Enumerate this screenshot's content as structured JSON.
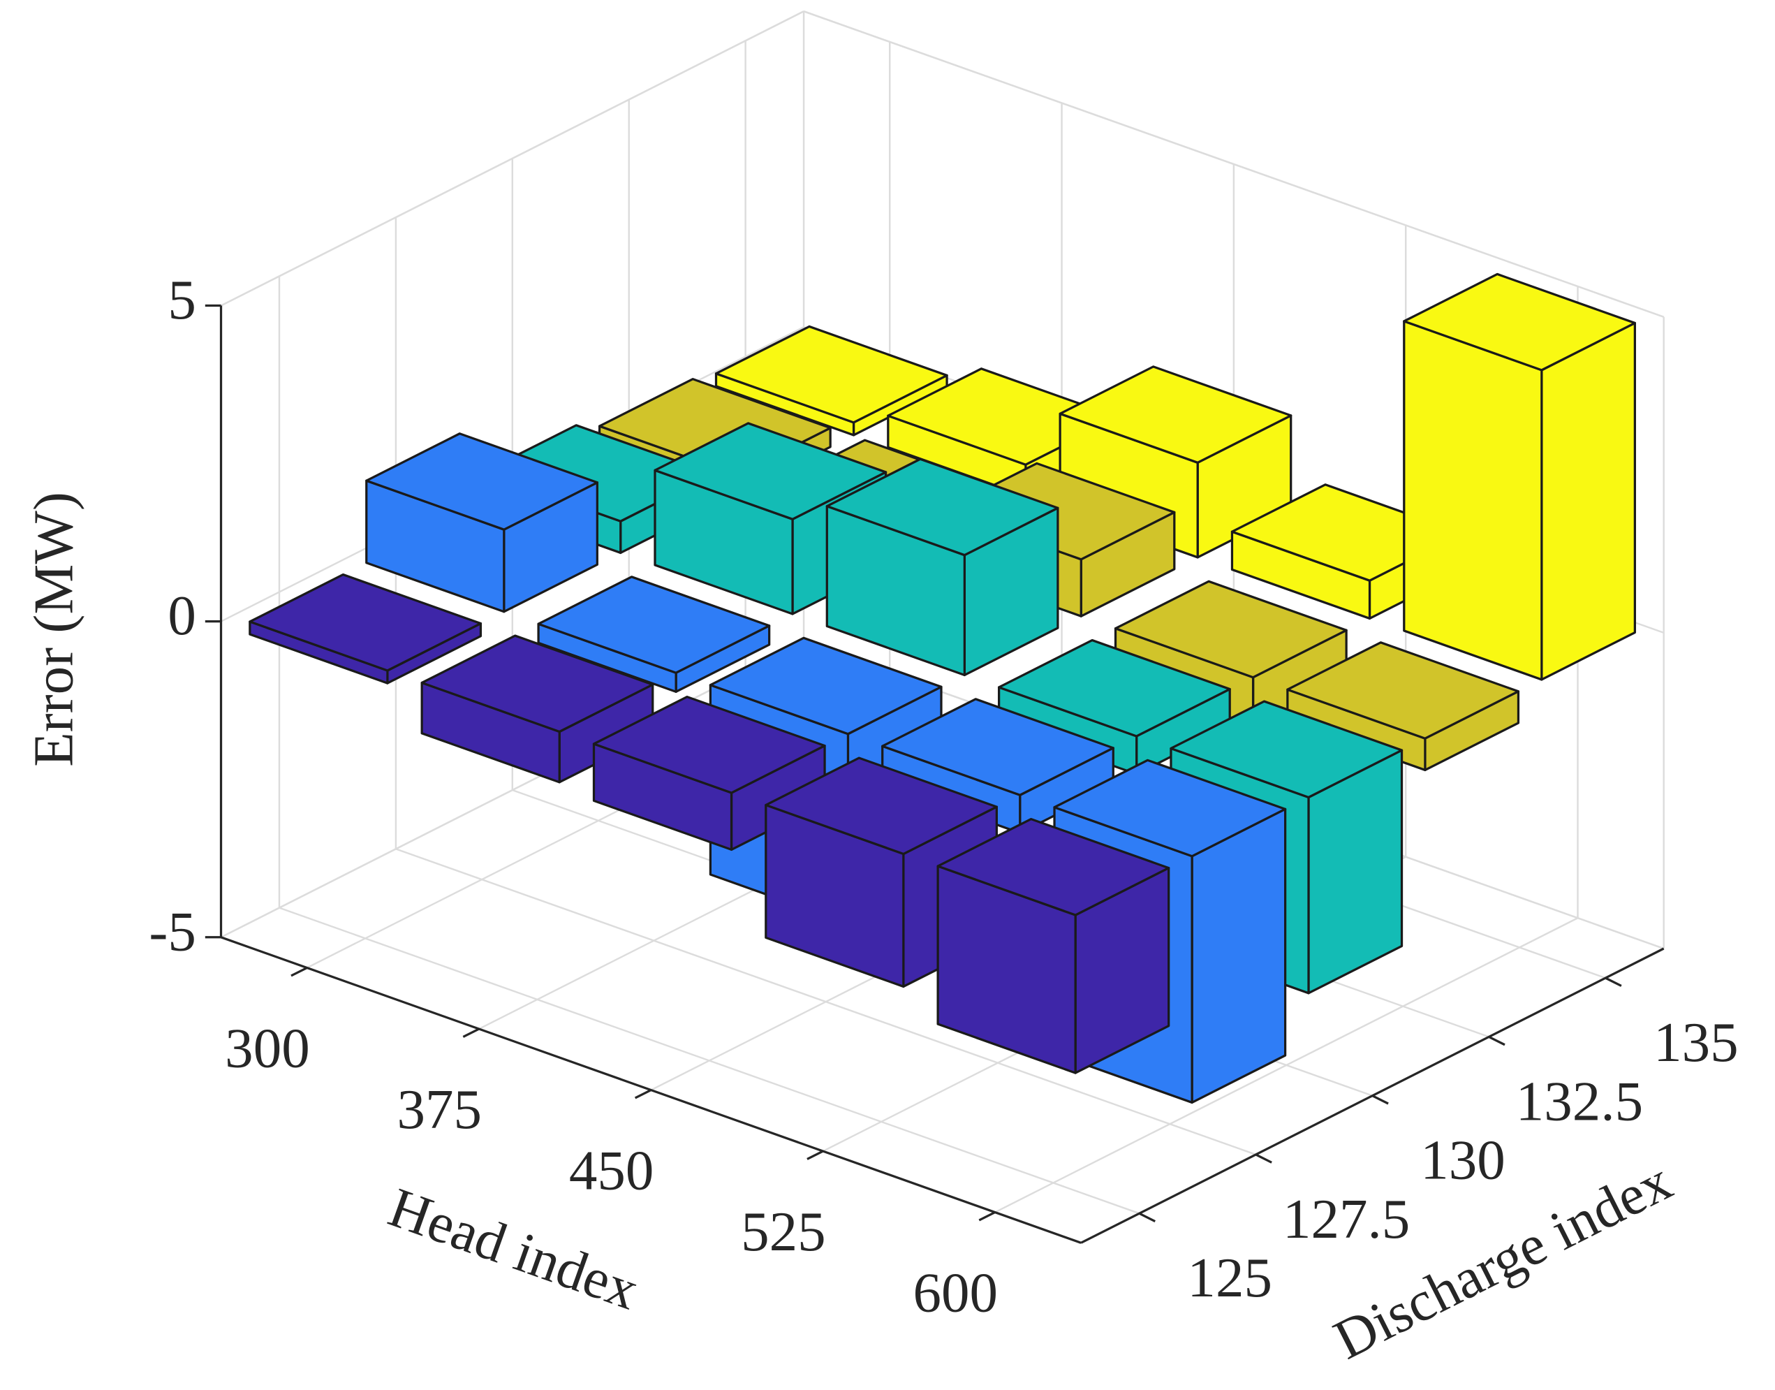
{
  "chart_data": {
    "type": "bar3d",
    "xlabel": "Head index",
    "ylabel": "Discharge index",
    "zlabel": "Error (MW)",
    "xlim": [
      262.5,
      637.5
    ],
    "xticks": [
      300,
      375,
      450,
      525,
      600
    ],
    "ylim": [
      123.75,
      136.25
    ],
    "yticks": [
      125,
      127.5,
      130,
      132.5,
      135
    ],
    "zlim": [
      -5,
      5
    ],
    "zticks": [
      -5,
      0,
      5
    ],
    "grid": true,
    "bar_width": 0.8,
    "series": [
      {
        "color": "#3e26a8",
        "values": [
          -0.2,
          -0.8,
          -0.9,
          -2.1,
          -2.5
        ]
      },
      {
        "color": "#2f7df6",
        "values": [
          1.3,
          -0.3,
          -3.0,
          -0.6,
          -3.9
        ]
      },
      {
        "color": "#13bcb5",
        "values": [
          0.5,
          1.5,
          1.9,
          -0.6,
          -3.1
        ]
      },
      {
        "color": "#d1c42a",
        "values": [
          0.3,
          0.3,
          0.9,
          -1.3,
          -0.5
        ]
      },
      {
        "color": "#f9f912",
        "values": [
          0.2,
          0.5,
          1.5,
          0.6,
          4.9
        ]
      }
    ]
  }
}
